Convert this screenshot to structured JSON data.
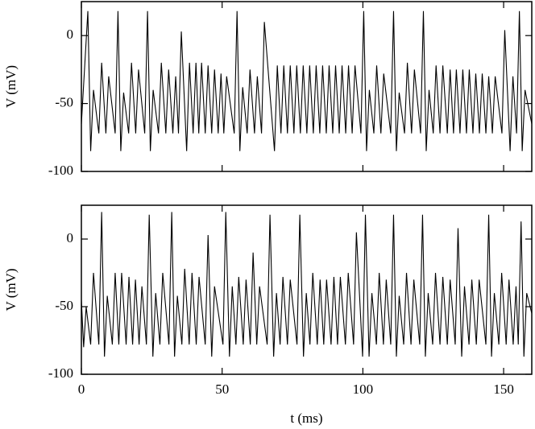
{
  "chart_data": [
    {
      "type": "line",
      "ylabel": "V (mV)",
      "xlim": [
        0,
        160
      ],
      "xticks": [
        0,
        50,
        100,
        150
      ],
      "show_xtick_labels": false,
      "ylim": [
        -100,
        25
      ],
      "yticks": [
        -100,
        -50,
        0
      ],
      "color": "#000000",
      "x": [
        0,
        2.3,
        3.3,
        4.3,
        6.2,
        7.2,
        8.7,
        9.7,
        12,
        13,
        14,
        15,
        16.8,
        17.8,
        19.3,
        20.3,
        22.5,
        23.5,
        24.5,
        25.5,
        27.4,
        28.4,
        30,
        31,
        32.5,
        33.5,
        34.5,
        35.5,
        37.4,
        38.4,
        39.7,
        40.7,
        41.7,
        42.7,
        44,
        45,
        46.3,
        47.3,
        48.6,
        49.6,
        50.6,
        51.6,
        54.3,
        55.3,
        56.3,
        57.3,
        58.9,
        59.9,
        61.5,
        62.5,
        64,
        65,
        68.6,
        69.6,
        70.9,
        71.9,
        73.2,
        74.2,
        75.5,
        76.5,
        77.8,
        78.8,
        80.1,
        81.1,
        82.4,
        83.4,
        84.7,
        85.7,
        87,
        88,
        89.3,
        90.3,
        91.6,
        92.6,
        93.9,
        94.9,
        96.2,
        97.2,
        99.3,
        100.3,
        101.3,
        102.3,
        103.9,
        104.9,
        106.4,
        107.4,
        109.9,
        110.9,
        111.9,
        112.9,
        114.8,
        115.8,
        117.3,
        118.3,
        120.5,
        121.5,
        122.5,
        123.5,
        125,
        126,
        127.4,
        128.4,
        130,
        131,
        132.2,
        133.2,
        134.5,
        135.5,
        136.8,
        137.8,
        139.1,
        140.1,
        141.4,
        142.4,
        143.7,
        144.7,
        146,
        147,
        149.4,
        150.4,
        152.3,
        153.3,
        154.6,
        155.6,
        156.6,
        157.6,
        160
      ],
      "values": [
        -65,
        18,
        -85,
        -40,
        -72,
        -20,
        -72,
        -30,
        -72,
        18,
        -85,
        -42,
        -72,
        -20,
        -72,
        -25,
        -72,
        18,
        -85,
        -40,
        -72,
        -20,
        -72,
        -25,
        -72,
        -30,
        -72,
        3,
        -85,
        -20,
        -72,
        -20,
        -72,
        -20,
        -72,
        -22,
        -72,
        -25,
        -72,
        -28,
        -72,
        -30,
        -72,
        18,
        -85,
        -38,
        -72,
        -25,
        -72,
        -30,
        -72,
        10,
        -85,
        -22,
        -72,
        -22,
        -72,
        -22,
        -72,
        -22,
        -72,
        -22,
        -72,
        -22,
        -72,
        -22,
        -72,
        -22,
        -72,
        -22,
        -72,
        -22,
        -72,
        -22,
        -72,
        -22,
        -72,
        -22,
        -72,
        18,
        -85,
        -40,
        -72,
        -22,
        -72,
        -28,
        -72,
        18,
        -85,
        -42,
        -72,
        -20,
        -72,
        -25,
        -72,
        18,
        -85,
        -40,
        -72,
        -22,
        -72,
        -22,
        -72,
        -25,
        -72,
        -25,
        -72,
        -25,
        -72,
        -25,
        -72,
        -28,
        -72,
        -28,
        -72,
        -30,
        -72,
        -30,
        -72,
        4,
        -85,
        -30,
        -72,
        18,
        -85,
        -40,
        -65
      ]
    },
    {
      "type": "line",
      "ylabel": "V (mV)",
      "xlabel": "t (ms)",
      "xlim": [
        0,
        160
      ],
      "xticks": [
        0,
        50,
        100,
        150
      ],
      "show_xtick_labels": true,
      "ylim": [
        -100,
        25
      ],
      "yticks": [
        -100,
        -50,
        0
      ],
      "color": "#000000",
      "x": [
        0,
        0.8,
        1.7,
        3.3,
        4.3,
        6.2,
        7.2,
        8.2,
        9.2,
        11,
        12,
        13.3,
        14.3,
        15.9,
        16.9,
        18.2,
        19.2,
        20.5,
        21.5,
        23.1,
        24.1,
        25.4,
        26.4,
        27.9,
        28.9,
        31.1,
        32.1,
        33.1,
        34.1,
        35.7,
        36.7,
        38.3,
        39.3,
        40.8,
        41.8,
        44,
        45,
        46.3,
        47.3,
        50.3,
        51.3,
        52.6,
        53.6,
        54.9,
        55.9,
        57.5,
        58.5,
        60,
        61,
        62.3,
        63.3,
        66,
        67,
        68.3,
        69.3,
        70.6,
        71.6,
        73.2,
        74.2,
        76.6,
        77.6,
        78.9,
        79.9,
        81.2,
        82.2,
        83.8,
        84.8,
        86.1,
        87.1,
        88.7,
        89.7,
        91,
        92,
        93.8,
        94.8,
        96.7,
        97.7,
        99.9,
        100.9,
        102.2,
        103.2,
        104.8,
        105.8,
        107.3,
        108.3,
        109.9,
        110.9,
        111.9,
        112.9,
        114.5,
        115.5,
        117.1,
        118.1,
        120.2,
        121.2,
        122.2,
        123.2,
        124.8,
        125.8,
        127.4,
        128.4,
        130,
        131,
        132.8,
        133.8,
        135.1,
        136.1,
        137.7,
        138.7,
        140.3,
        141.3,
        143.7,
        144.7,
        145.7,
        146.7,
        148.3,
        149.3,
        150.9,
        151.9,
        153.4,
        154.4,
        155.2,
        156.2,
        157.2,
        158.2,
        160
      ],
      "values": [
        -45,
        -80,
        -50,
        -78,
        -25,
        -78,
        20,
        -87,
        -42,
        -78,
        -25,
        -78,
        -25,
        -78,
        -28,
        -78,
        -30,
        -78,
        -35,
        -78,
        18,
        -87,
        -40,
        -78,
        -25,
        -78,
        20,
        -87,
        -42,
        -78,
        -22,
        -78,
        -25,
        -78,
        -28,
        -78,
        3,
        -87,
        -35,
        -78,
        20,
        -87,
        -35,
        -78,
        -28,
        -78,
        -30,
        -78,
        -10,
        -78,
        -35,
        -78,
        18,
        -87,
        -40,
        -78,
        -28,
        -78,
        -30,
        -78,
        18,
        -87,
        -40,
        -78,
        -25,
        -78,
        -30,
        -78,
        -30,
        -78,
        -28,
        -78,
        -28,
        -78,
        -25,
        -78,
        5,
        -87,
        18,
        -87,
        -40,
        -78,
        -25,
        -78,
        -30,
        -78,
        18,
        -87,
        -42,
        -78,
        -25,
        -78,
        -30,
        -78,
        18,
        -87,
        -40,
        -78,
        -25,
        -78,
        -28,
        -78,
        -30,
        -78,
        8,
        -87,
        -35,
        -78,
        -30,
        -78,
        -30,
        -78,
        18,
        -87,
        -40,
        -78,
        -25,
        -78,
        -30,
        -78,
        -35,
        -78,
        13,
        -87,
        -40,
        -55
      ]
    }
  ]
}
